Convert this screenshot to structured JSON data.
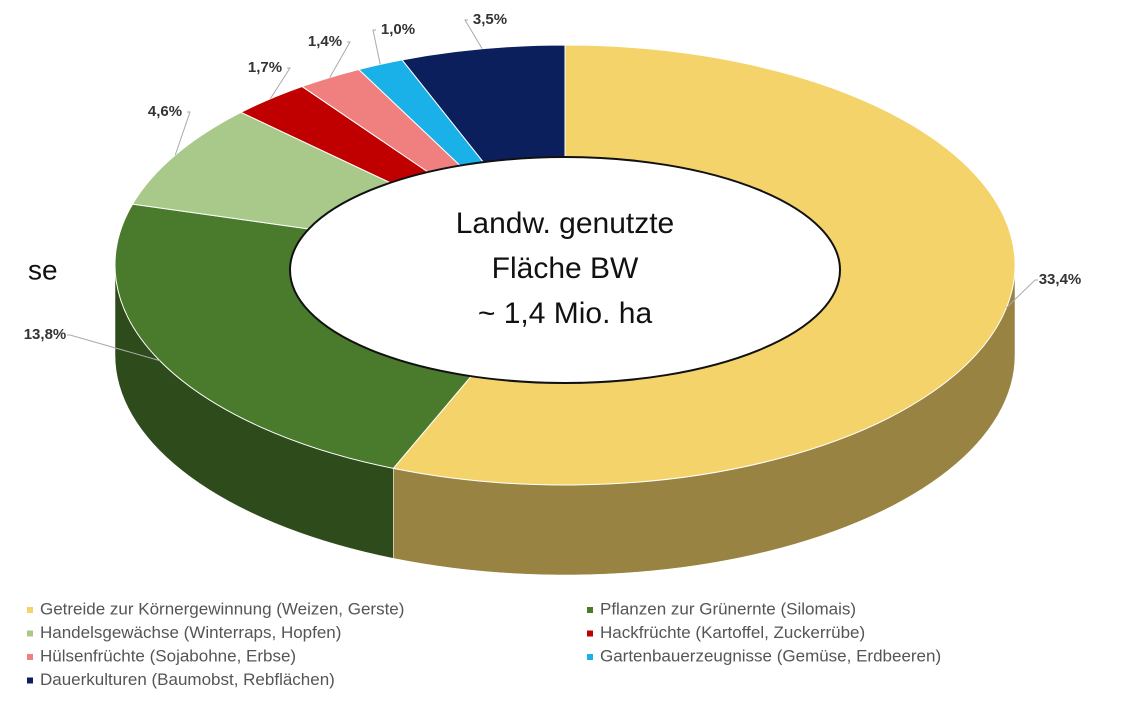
{
  "chart_data": {
    "type": "pie",
    "categories": [
      "Getreide zur Körnergewinnung (Weizen, Gerste)",
      "Pflanzen zur Grünernte (Silomais)",
      "Handelsgewächse (Winterraps, Hopfen)",
      "Hackfrüchte (Kartoffel, Zuckerrübe)",
      "Hülsenfrüchte (Sojabohne, Erbse)",
      "Gartenbauerzeugnisse (Gemüse, Erdbeeren)",
      "Dauerkulturen (Baumobst, Rebflächen)"
    ],
    "values": [
      33.4,
      13.8,
      4.6,
      1.7,
      1.4,
      1.0,
      3.5
    ],
    "value_labels": [
      "33,4%",
      "13,8%",
      "4,6%",
      "1,7%",
      "1,4%",
      "1,0%",
      "3,5%"
    ],
    "colors": [
      "#f5d36b",
      "#4a7a2c",
      "#a9c98a",
      "#c00000",
      "#f08080",
      "#1ab0e8",
      "#0a1f5c"
    ],
    "annotations": [
      "Landw. genutzte",
      "Fläche BW",
      "~ 1,4 Mio. ha"
    ],
    "cut_text": "se"
  }
}
